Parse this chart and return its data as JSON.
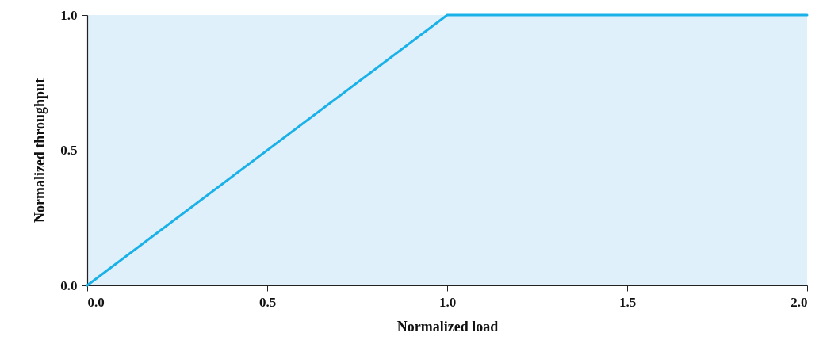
{
  "chart_data": {
    "type": "line",
    "xlabel": "Normalized load",
    "ylabel": "Normalized throughput",
    "x": [
      0,
      1,
      2
    ],
    "series": [
      {
        "color": "#1ab0e8",
        "values": [
          0,
          1,
          1
        ]
      }
    ],
    "xlim": [
      0,
      2
    ],
    "ylim": [
      0,
      1
    ],
    "xticks": [
      {
        "value": 0,
        "label": "0.0"
      },
      {
        "value": 0.5,
        "label": "0.5"
      },
      {
        "value": 1,
        "label": "1.0"
      },
      {
        "value": 1.5,
        "label": "1.5"
      },
      {
        "value": 2,
        "label": "2.0"
      }
    ],
    "yticks": [
      {
        "value": 0,
        "label": "0.0"
      },
      {
        "value": 0.5,
        "label": "0.5"
      },
      {
        "value": 1,
        "label": "1.0"
      }
    ],
    "grid": false,
    "marker": "none",
    "line_style": "solid"
  }
}
